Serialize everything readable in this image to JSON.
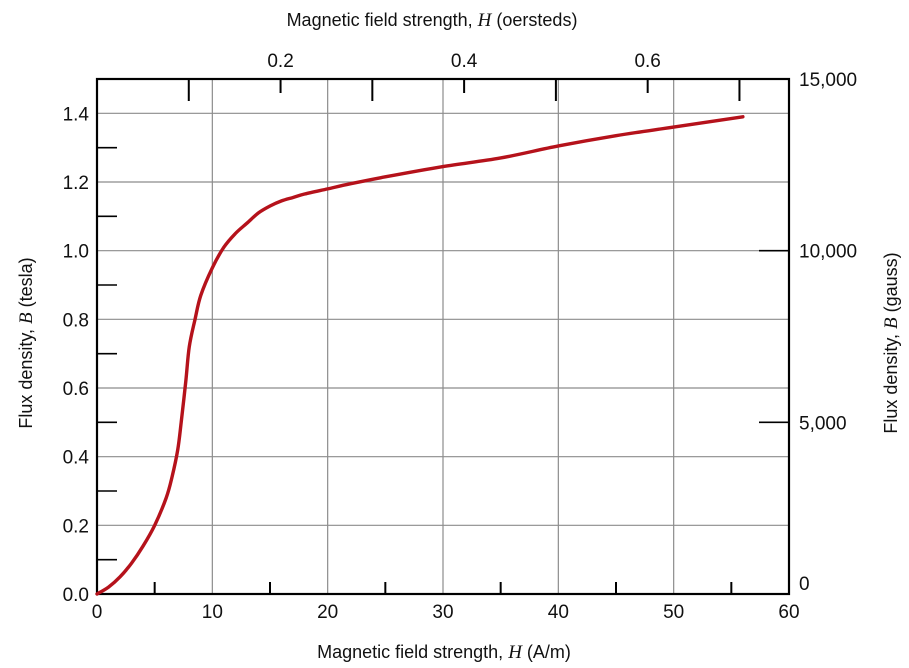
{
  "chart_data": {
    "type": "line",
    "title": "",
    "x_axis": {
      "label_prefix": "Magnetic field strength, ",
      "label_symbol": "H",
      "label_suffix": " (A/m)",
      "xlim": [
        0,
        60
      ],
      "ticks": [
        0,
        10,
        20,
        30,
        40,
        50,
        60
      ]
    },
    "y_axis": {
      "label_prefix": "Flux density, ",
      "label_symbol": "B",
      "label_suffix": " (tesla)",
      "ylim": [
        0,
        1.5
      ],
      "ticks": [
        "0.0",
        "0.2",
        "0.4",
        "0.6",
        "0.8",
        "1.0",
        "1.2",
        "1.4"
      ]
    },
    "top_axis": {
      "label_prefix": "Magnetic field strength, ",
      "label_symbol": "H",
      "label_suffix": " (oersteds)",
      "ticks": [
        "0.2",
        "0.4",
        "0.6"
      ]
    },
    "right_axis": {
      "label_prefix": "Flux density, ",
      "label_symbol": "B",
      "label_suffix": " (gauss)",
      "ticks": [
        "0",
        "5,000",
        "10,000",
        "15,000"
      ]
    },
    "grid": true,
    "colors": {
      "curve": "#b5121b",
      "grid": "#8c8c8c",
      "axis": "#000000"
    },
    "series": [
      {
        "x": [
          0,
          1,
          2,
          3,
          4,
          5,
          6,
          6.5,
          7,
          7.3,
          7.7,
          8,
          8.5,
          9,
          10,
          11,
          12,
          13,
          14,
          15,
          16,
          17,
          18,
          20,
          22,
          25,
          30,
          35,
          40,
          45,
          50,
          56
        ],
        "y": [
          0,
          0.02,
          0.05,
          0.09,
          0.14,
          0.2,
          0.28,
          0.34,
          0.42,
          0.5,
          0.62,
          0.72,
          0.8,
          0.87,
          0.95,
          1.01,
          1.05,
          1.08,
          1.11,
          1.13,
          1.145,
          1.155,
          1.165,
          1.18,
          1.195,
          1.215,
          1.245,
          1.27,
          1.305,
          1.335,
          1.36,
          1.39
        ]
      }
    ]
  }
}
